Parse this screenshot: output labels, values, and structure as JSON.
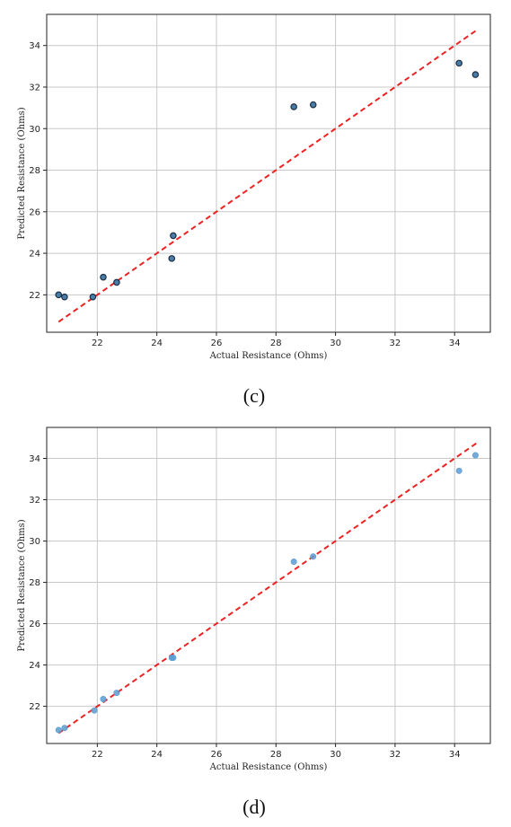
{
  "chart_data": [
    {
      "type": "scatter",
      "caption": "(c)",
      "xlabel": "Actual Resistance (Ohms)",
      "ylabel": "Predicted Resistance (Ohms)",
      "xlim": [
        20.3,
        35.2
      ],
      "ylim": [
        20.2,
        35.5
      ],
      "xticks": [
        22,
        24,
        26,
        28,
        30,
        32,
        34
      ],
      "yticks": [
        22,
        24,
        26,
        28,
        30,
        32,
        34
      ],
      "grid": true,
      "reference_line": {
        "x": [
          20.7,
          34.8
        ],
        "y": [
          20.7,
          34.8
        ],
        "color": "#ee2222",
        "style": "dashed"
      },
      "marker_color": "#4a7ca8",
      "marker_edge": "#1c2f44",
      "points": [
        {
          "x": 20.7,
          "y": 22.0
        },
        {
          "x": 20.9,
          "y": 21.9
        },
        {
          "x": 21.85,
          "y": 21.9
        },
        {
          "x": 22.2,
          "y": 22.85
        },
        {
          "x": 22.65,
          "y": 22.6
        },
        {
          "x": 24.5,
          "y": 23.75
        },
        {
          "x": 24.55,
          "y": 24.85
        },
        {
          "x": 28.6,
          "y": 31.05
        },
        {
          "x": 29.25,
          "y": 31.15
        },
        {
          "x": 34.15,
          "y": 33.15
        },
        {
          "x": 34.7,
          "y": 32.6
        }
      ]
    },
    {
      "type": "scatter",
      "caption": "(d)",
      "xlabel": "Actual Resistance (Ohms)",
      "ylabel": "Predicted Resistance (Ohms)",
      "xlim": [
        20.3,
        35.2
      ],
      "ylim": [
        20.2,
        35.5
      ],
      "xticks": [
        22,
        24,
        26,
        28,
        30,
        32,
        34
      ],
      "yticks": [
        22,
        24,
        26,
        28,
        30,
        32,
        34
      ],
      "grid": true,
      "reference_line": {
        "x": [
          20.7,
          34.8
        ],
        "y": [
          20.7,
          34.8
        ],
        "color": "#ee2222",
        "style": "dashed"
      },
      "marker_color": "#5b9bd0",
      "marker_edge": "#5b9bd0",
      "points": [
        {
          "x": 20.7,
          "y": 20.85
        },
        {
          "x": 20.9,
          "y": 20.95
        },
        {
          "x": 21.9,
          "y": 21.8
        },
        {
          "x": 22.2,
          "y": 22.35
        },
        {
          "x": 22.65,
          "y": 22.65
        },
        {
          "x": 24.5,
          "y": 24.35
        },
        {
          "x": 24.55,
          "y": 24.35
        },
        {
          "x": 28.6,
          "y": 29.0
        },
        {
          "x": 29.25,
          "y": 29.25
        },
        {
          "x": 34.15,
          "y": 33.4
        },
        {
          "x": 34.7,
          "y": 34.15
        }
      ]
    }
  ]
}
